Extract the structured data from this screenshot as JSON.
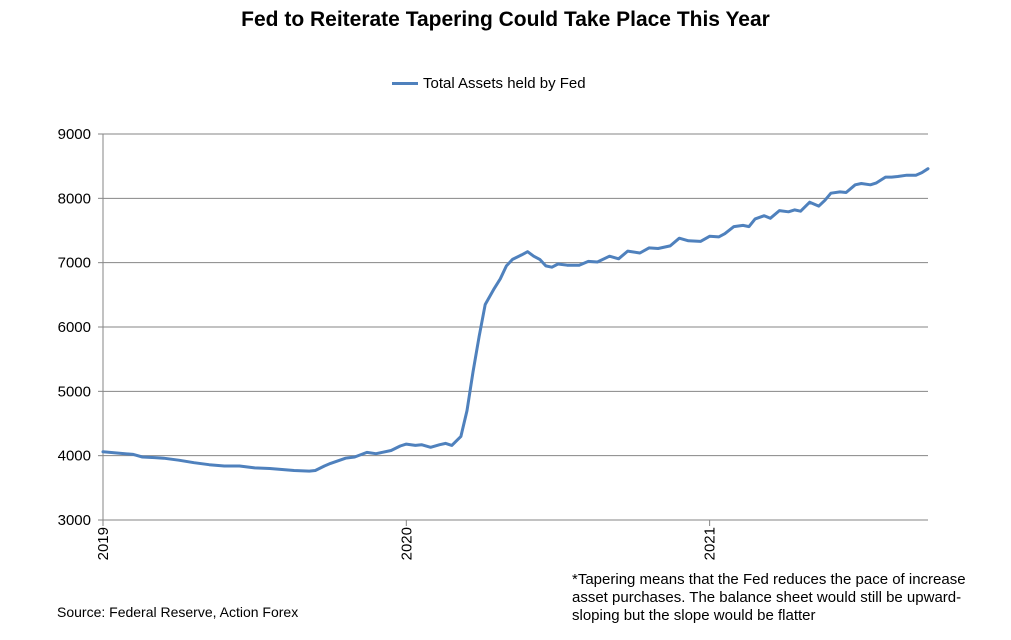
{
  "chart_data": {
    "type": "line",
    "title": "Fed to Reiterate Tapering Could Take Place This Year",
    "xlabel": "",
    "ylabel": "",
    "ylim": [
      3000,
      9000
    ],
    "yticks": [
      3000,
      4000,
      5000,
      6000,
      7000,
      8000,
      9000
    ],
    "xlim": [
      2019.0,
      2021.72
    ],
    "xticks": [
      {
        "value": 2019,
        "label": "2019"
      },
      {
        "value": 2020,
        "label": "2020"
      },
      {
        "value": 2021,
        "label": "2021"
      }
    ],
    "grid": true,
    "legend_position": "top-center",
    "series": [
      {
        "name": "Total Assets held by Fed",
        "color": "#4F81BD",
        "x": [
          2019.0,
          2019.05,
          2019.1,
          2019.13,
          2019.17,
          2019.2,
          2019.25,
          2019.3,
          2019.35,
          2019.4,
          2019.45,
          2019.5,
          2019.55,
          2019.6,
          2019.63,
          2019.68,
          2019.7,
          2019.73,
          2019.75,
          2019.8,
          2019.83,
          2019.87,
          2019.9,
          2019.95,
          2019.98,
          2020.0,
          2020.03,
          2020.05,
          2020.08,
          2020.11,
          2020.13,
          2020.15,
          2020.18,
          2020.2,
          2020.22,
          2020.24,
          2020.26,
          2020.29,
          2020.31,
          2020.33,
          2020.35,
          2020.38,
          2020.4,
          2020.42,
          2020.44,
          2020.46,
          2020.48,
          2020.5,
          2020.53,
          2020.57,
          2020.6,
          2020.63,
          2020.67,
          2020.7,
          2020.73,
          2020.77,
          2020.8,
          2020.83,
          2020.87,
          2020.9,
          2020.93,
          2020.97,
          2021.0,
          2021.03,
          2021.05,
          2021.08,
          2021.11,
          2021.13,
          2021.15,
          2021.18,
          2021.2,
          2021.23,
          2021.26,
          2021.28,
          2021.3,
          2021.33,
          2021.36,
          2021.38,
          2021.4,
          2021.43,
          2021.45,
          2021.48,
          2021.5,
          2021.53,
          2021.55,
          2021.58,
          2021.6,
          2021.62,
          2021.65,
          2021.68,
          2021.7,
          2021.72
        ],
        "y": [
          4060,
          4040,
          4020,
          3980,
          3970,
          3960,
          3930,
          3890,
          3860,
          3840,
          3840,
          3810,
          3800,
          3780,
          3770,
          3760,
          3770,
          3840,
          3880,
          3960,
          3980,
          4050,
          4030,
          4080,
          4150,
          4180,
          4160,
          4170,
          4130,
          4170,
          4190,
          4160,
          4300,
          4700,
          5300,
          5850,
          6350,
          6600,
          6750,
          6950,
          7050,
          7120,
          7170,
          7100,
          7050,
          6950,
          6930,
          6980,
          6960,
          6960,
          7020,
          7010,
          7100,
          7060,
          7180,
          7150,
          7230,
          7220,
          7260,
          7380,
          7340,
          7330,
          7410,
          7400,
          7450,
          7560,
          7580,
          7560,
          7680,
          7730,
          7690,
          7810,
          7790,
          7820,
          7800,
          7940,
          7880,
          7970,
          8080,
          8100,
          8090,
          8210,
          8230,
          8210,
          8240,
          8330,
          8330,
          8340,
          8360,
          8360,
          8400,
          8460
        ]
      }
    ]
  },
  "source": "Source: Federal Reserve, Action Forex",
  "note": "*Tapering means  that the Fed reduces the pace of increase asset purchases. The balance sheet would still be upward-sloping but the slope would be flatter"
}
